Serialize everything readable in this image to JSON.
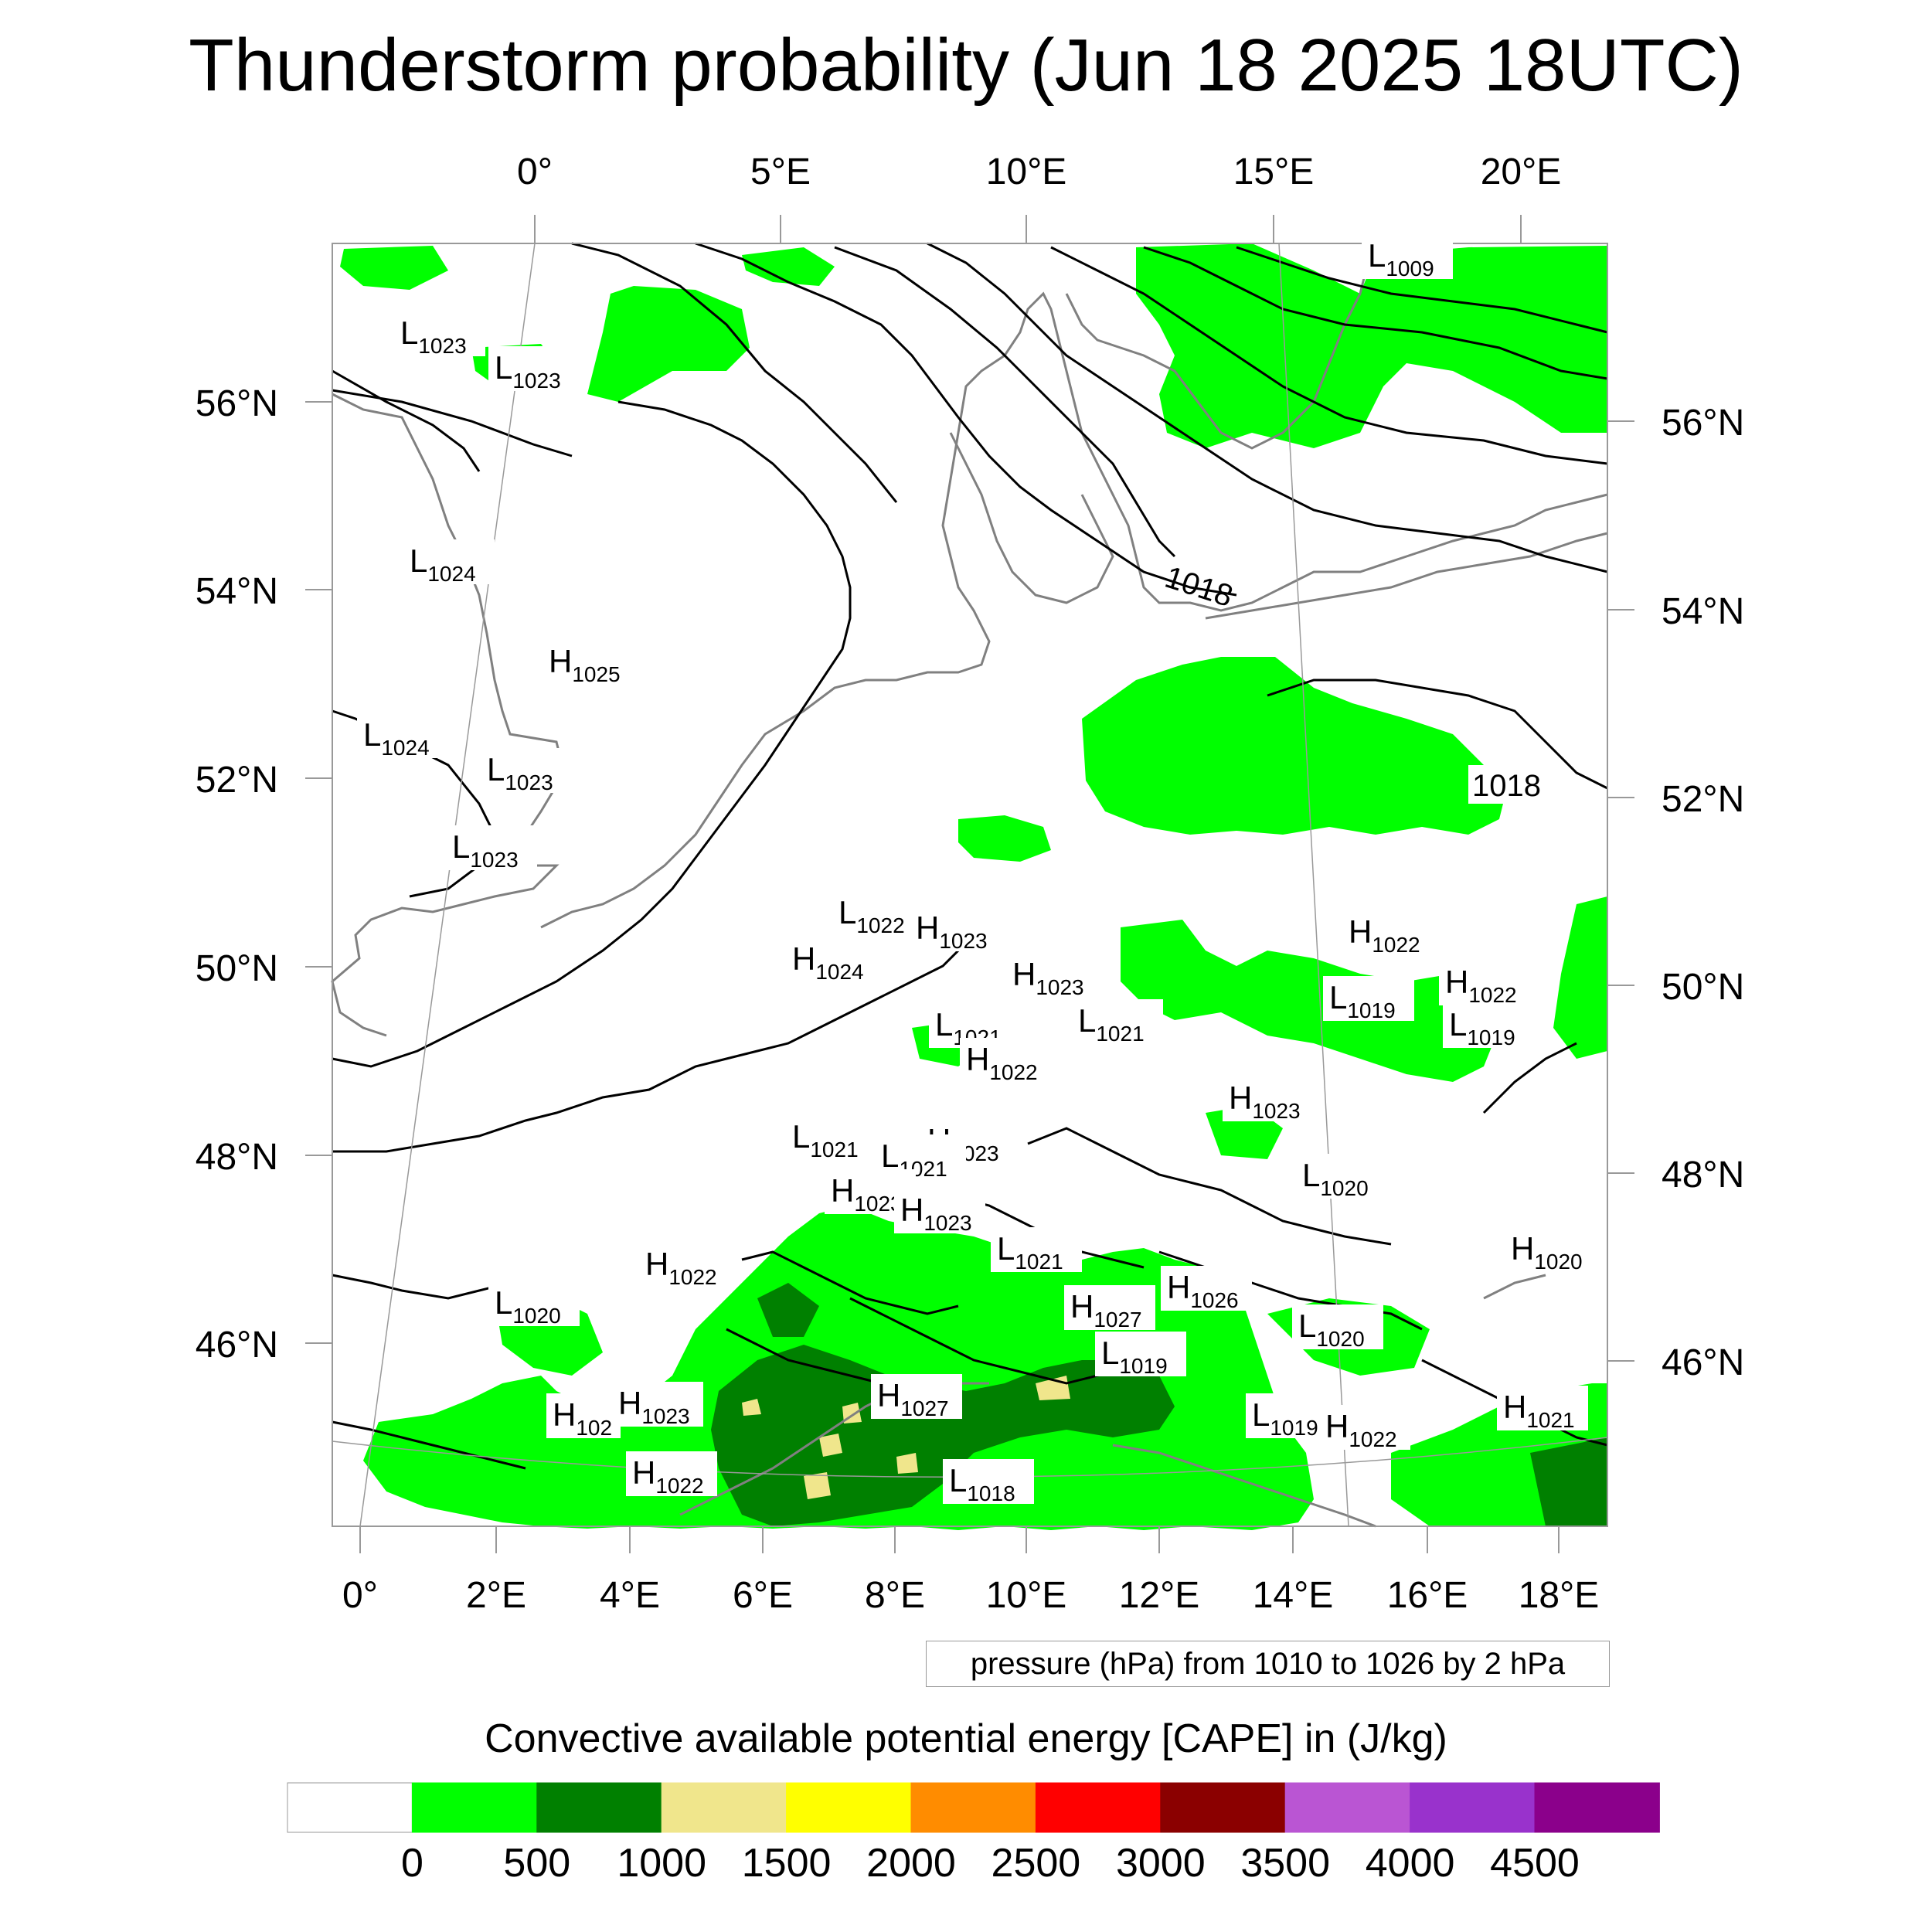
{
  "title": "Thunderstorm probability (Jun 18 2025 18UTC)",
  "top_lon_labels": [
    "0°",
    "5°E",
    "10°E",
    "15°E",
    "20°E"
  ],
  "bottom_lon_labels": [
    "0°",
    "2°E",
    "4°E",
    "6°E",
    "8°E",
    "10°E",
    "12°E",
    "14°E",
    "16°E",
    "18°E"
  ],
  "left_lat_labels": [
    "56°N",
    "54°N",
    "52°N",
    "50°N",
    "48°N",
    "46°N"
  ],
  "right_lat_labels": [
    "56°N",
    "54°N",
    "52°N",
    "50°N",
    "48°N",
    "46°N"
  ],
  "contour_info": "pressure (hPa) from 1010 to 1026 by 2 hPa",
  "contour_labels": [
    "1018",
    "1018"
  ],
  "pressure_centers": [
    {
      "type": "L",
      "value": "1009"
    },
    {
      "type": "L",
      "value": "1023"
    },
    {
      "type": "L",
      "value": "1023"
    },
    {
      "type": "L",
      "value": "1024"
    },
    {
      "type": "H",
      "value": "1025"
    },
    {
      "type": "L",
      "value": "1024"
    },
    {
      "type": "L",
      "value": "1023"
    },
    {
      "type": "L",
      "value": "1023"
    },
    {
      "type": "L",
      "value": "1022"
    },
    {
      "type": "H",
      "value": "1023"
    },
    {
      "type": "H",
      "value": "1024"
    },
    {
      "type": "H",
      "value": "1023"
    },
    {
      "type": "L",
      "value": "1021"
    },
    {
      "type": "L",
      "value": "1021"
    },
    {
      "type": "H",
      "value": "1022"
    },
    {
      "type": "H",
      "value": "1022"
    },
    {
      "type": "L",
      "value": "1019"
    },
    {
      "type": "H",
      "value": "1022"
    },
    {
      "type": "L",
      "value": "1019"
    },
    {
      "type": "H",
      "value": "1023"
    },
    {
      "type": "L",
      "value": "1021"
    },
    {
      "type": "H",
      "value": "1023"
    },
    {
      "type": "L",
      "value": "1021"
    },
    {
      "type": "H",
      "value": "1023"
    },
    {
      "type": "H",
      "value": "1023"
    },
    {
      "type": "L",
      "value": "1020"
    },
    {
      "type": "L",
      "value": "1021"
    },
    {
      "type": "H",
      "value": "1022"
    },
    {
      "type": "H",
      "value": "1026"
    },
    {
      "type": "H",
      "value": "1027"
    },
    {
      "type": "L",
      "value": "1020"
    },
    {
      "type": "L",
      "value": "1020"
    },
    {
      "type": "H",
      "value": "1020"
    },
    {
      "type": "L",
      "value": "1019"
    },
    {
      "type": "H",
      "value": "1027"
    },
    {
      "type": "H",
      "value": "102"
    },
    {
      "type": "H",
      "value": "1023"
    },
    {
      "type": "L",
      "value": "1019"
    },
    {
      "type": "H",
      "value": "1022"
    },
    {
      "type": "H",
      "value": "1021"
    },
    {
      "type": "H",
      "value": "1022"
    },
    {
      "type": "L",
      "value": "1018"
    }
  ],
  "colorbar": {
    "title": "Convective available potential energy [CAPE] in (J/kg)",
    "colors": [
      "#ffffff",
      "#00ff00",
      "#008000",
      "#f0e68c",
      "#ffff00",
      "#ff8c00",
      "#ff0000",
      "#8b0000",
      "#ba55d3",
      "#9932cc",
      "#8b008b"
    ],
    "labels": [
      "0",
      "500",
      "1000",
      "1500",
      "2000",
      "2500",
      "3000",
      "3500",
      "4000",
      "4500"
    ]
  }
}
